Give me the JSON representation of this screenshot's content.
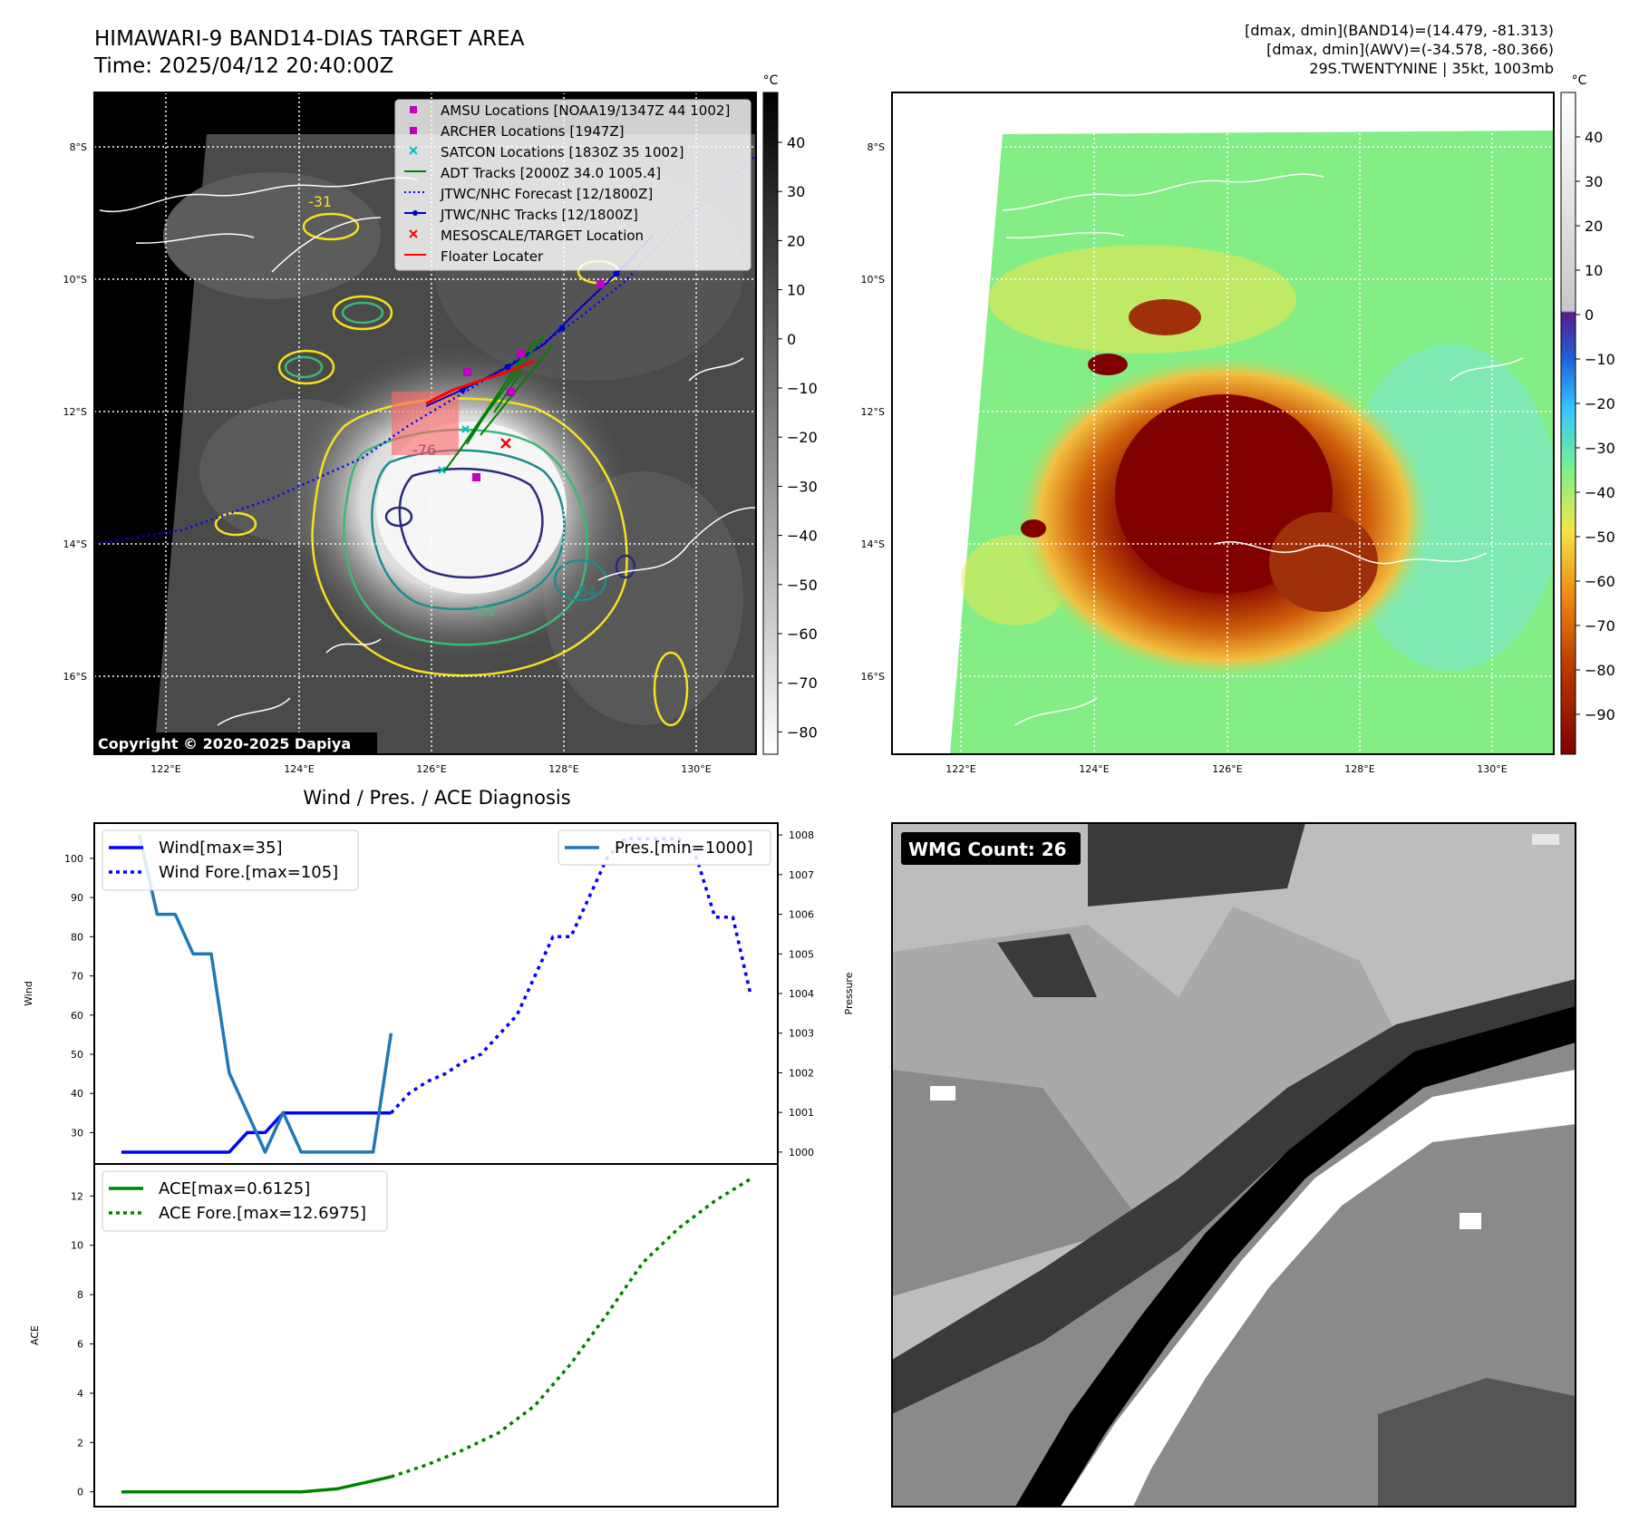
{
  "header": {
    "title_line1": "HIMAWARI-9 BAND14-DIAS TARGET AREA",
    "title_line2": "Time: 2025/04/12 20:40:00Z",
    "info_line1": "[dmax, dmin](BAND14)=(14.479, -81.313)",
    "info_line2": "[dmax, dmin](AWV)=(-34.578, -80.366)",
    "info_line3": "29S.TWENTYNINE | 35kt, 1003mb"
  },
  "colors": {
    "wind": "#0000ff",
    "pressure": "#1f77b4",
    "ace": "#008000",
    "amsu": "#bf00bf",
    "satcon": "#00bfbf",
    "target": "#ff0000",
    "contour_yellow": "#f5e11e",
    "contour_green": "#3cb878",
    "contour_teal": "#1e8c8c",
    "contour_navy": "#2a2a7a"
  },
  "map_axes": {
    "lat_labels": [
      "8°S",
      "10°S",
      "12°S",
      "14°S",
      "16°S"
    ],
    "lon_labels": [
      "122°E",
      "124°E",
      "126°E",
      "128°E",
      "130°E"
    ],
    "copyright": "Copyright © 2020-2025 Dapiya",
    "contour_labels": [
      "-31",
      "-54",
      "-64",
      "-76"
    ]
  },
  "ir_colorbar": {
    "unit": "°C",
    "ticks": [
      "40",
      "30",
      "20",
      "10",
      "0",
      "−10",
      "−20",
      "−30",
      "−40",
      "−50",
      "−60",
      "−70",
      "−80"
    ]
  },
  "awv_colorbar": {
    "unit": "°C",
    "ticks": [
      "40",
      "30",
      "20",
      "10",
      "0",
      "−10",
      "−20",
      "−30",
      "−40",
      "−50",
      "−60",
      "−70",
      "−80",
      "−90"
    ]
  },
  "legend": {
    "items": [
      {
        "label": "AMSU Locations [NOAA19/1347Z 44 1002]",
        "icon": "magenta-square-icon"
      },
      {
        "label": "ARCHER Locations [1947Z]",
        "icon": "magenta-square-icon"
      },
      {
        "label": "SATCON Locations [1830Z 35 1002]",
        "icon": "cyan-x-icon"
      },
      {
        "label": "ADT Tracks [2000Z 34.0 1005.4]",
        "icon": "green-line-icon"
      },
      {
        "label": "JTWC/NHC Forecast [12/1800Z]",
        "icon": "blue-dotted-line-icon"
      },
      {
        "label": "JTWC/NHC Tracks [12/1800Z]",
        "icon": "blue-dot-line-icon"
      },
      {
        "label": "MESOSCALE/TARGET Location",
        "icon": "red-x-icon"
      },
      {
        "label": "Floater Locater",
        "icon": "red-line-icon"
      }
    ]
  },
  "diag": {
    "title": "Wind / Pres. / ACE Diagnosis",
    "wind_ylabel": "Wind",
    "pres_ylabel": "Pressure",
    "ace_ylabel": "ACE",
    "legend_wind": "Wind[max=35]",
    "legend_wind_fore": "Wind Fore.[max=105]",
    "legend_pres": "Pres.[min=1000]",
    "legend_ace": "ACE[max=0.6125]",
    "legend_ace_fore": "ACE Fore.[max=12.6975]"
  },
  "wmg": {
    "label": "WMG Count: 26"
  },
  "chart_data": [
    {
      "type": "line",
      "title": "Wind / Pres. / ACE Diagnosis",
      "ylabel": "Wind",
      "ylim": [
        22,
        109
      ],
      "yticks": [
        30,
        40,
        50,
        60,
        70,
        80,
        90,
        100
      ],
      "series": [
        {
          "name": "Wind[max=35]",
          "x": [
            0,
            1,
            2,
            3,
            4,
            5,
            6,
            7,
            8,
            9,
            10,
            11,
            12,
            13,
            14,
            15
          ],
          "values": [
            25,
            25,
            25,
            25,
            25,
            25,
            25,
            30,
            30,
            35,
            35,
            35,
            35,
            35,
            35,
            35
          ]
        },
        {
          "name": "Wind Fore.[max=105]",
          "x": [
            15,
            16,
            17,
            18,
            19,
            20,
            21,
            22,
            23,
            24,
            25,
            26,
            27,
            28,
            29,
            30,
            31,
            32,
            33,
            34,
            35
          ],
          "values": [
            35,
            40,
            43,
            45,
            48,
            50,
            55,
            60,
            70,
            80,
            80,
            90,
            100,
            105,
            105,
            105,
            105,
            100,
            85,
            85,
            65
          ]
        }
      ]
    },
    {
      "type": "line",
      "ylabel": "Pressure",
      "ylim": [
        999.7,
        1008.3
      ],
      "yticks": [
        1000,
        1001,
        1002,
        1003,
        1004,
        1005,
        1006,
        1007,
        1008
      ],
      "series": [
        {
          "name": "Pres.[min=1000]",
          "x": [
            1,
            2,
            3,
            4,
            5,
            6,
            7,
            8,
            9,
            10,
            11,
            12,
            13,
            14,
            15
          ],
          "values": [
            1008,
            1006,
            1006,
            1005,
            1005,
            1002,
            1001,
            1000,
            1001,
            1000,
            1000,
            1000,
            1000,
            1000,
            1003
          ]
        }
      ]
    },
    {
      "type": "line",
      "ylabel": "ACE",
      "ylim": [
        -0.6,
        13.3
      ],
      "yticks": [
        0,
        2,
        4,
        6,
        8,
        10,
        12
      ],
      "series": [
        {
          "name": "ACE[max=0.6125]",
          "x": [
            0,
            2,
            4,
            6,
            8,
            10,
            12,
            15
          ],
          "values": [
            0,
            0,
            0,
            0,
            0,
            0,
            0.12,
            0.61
          ]
        },
        {
          "name": "ACE Fore.[max=12.6975]",
          "x": [
            15,
            17,
            19,
            21,
            23,
            25,
            27,
            29,
            31,
            33,
            35
          ],
          "values": [
            0.61,
            1.1,
            1.7,
            2.4,
            3.5,
            5.2,
            7.2,
            9.3,
            10.7,
            11.8,
            12.7
          ]
        }
      ]
    }
  ]
}
